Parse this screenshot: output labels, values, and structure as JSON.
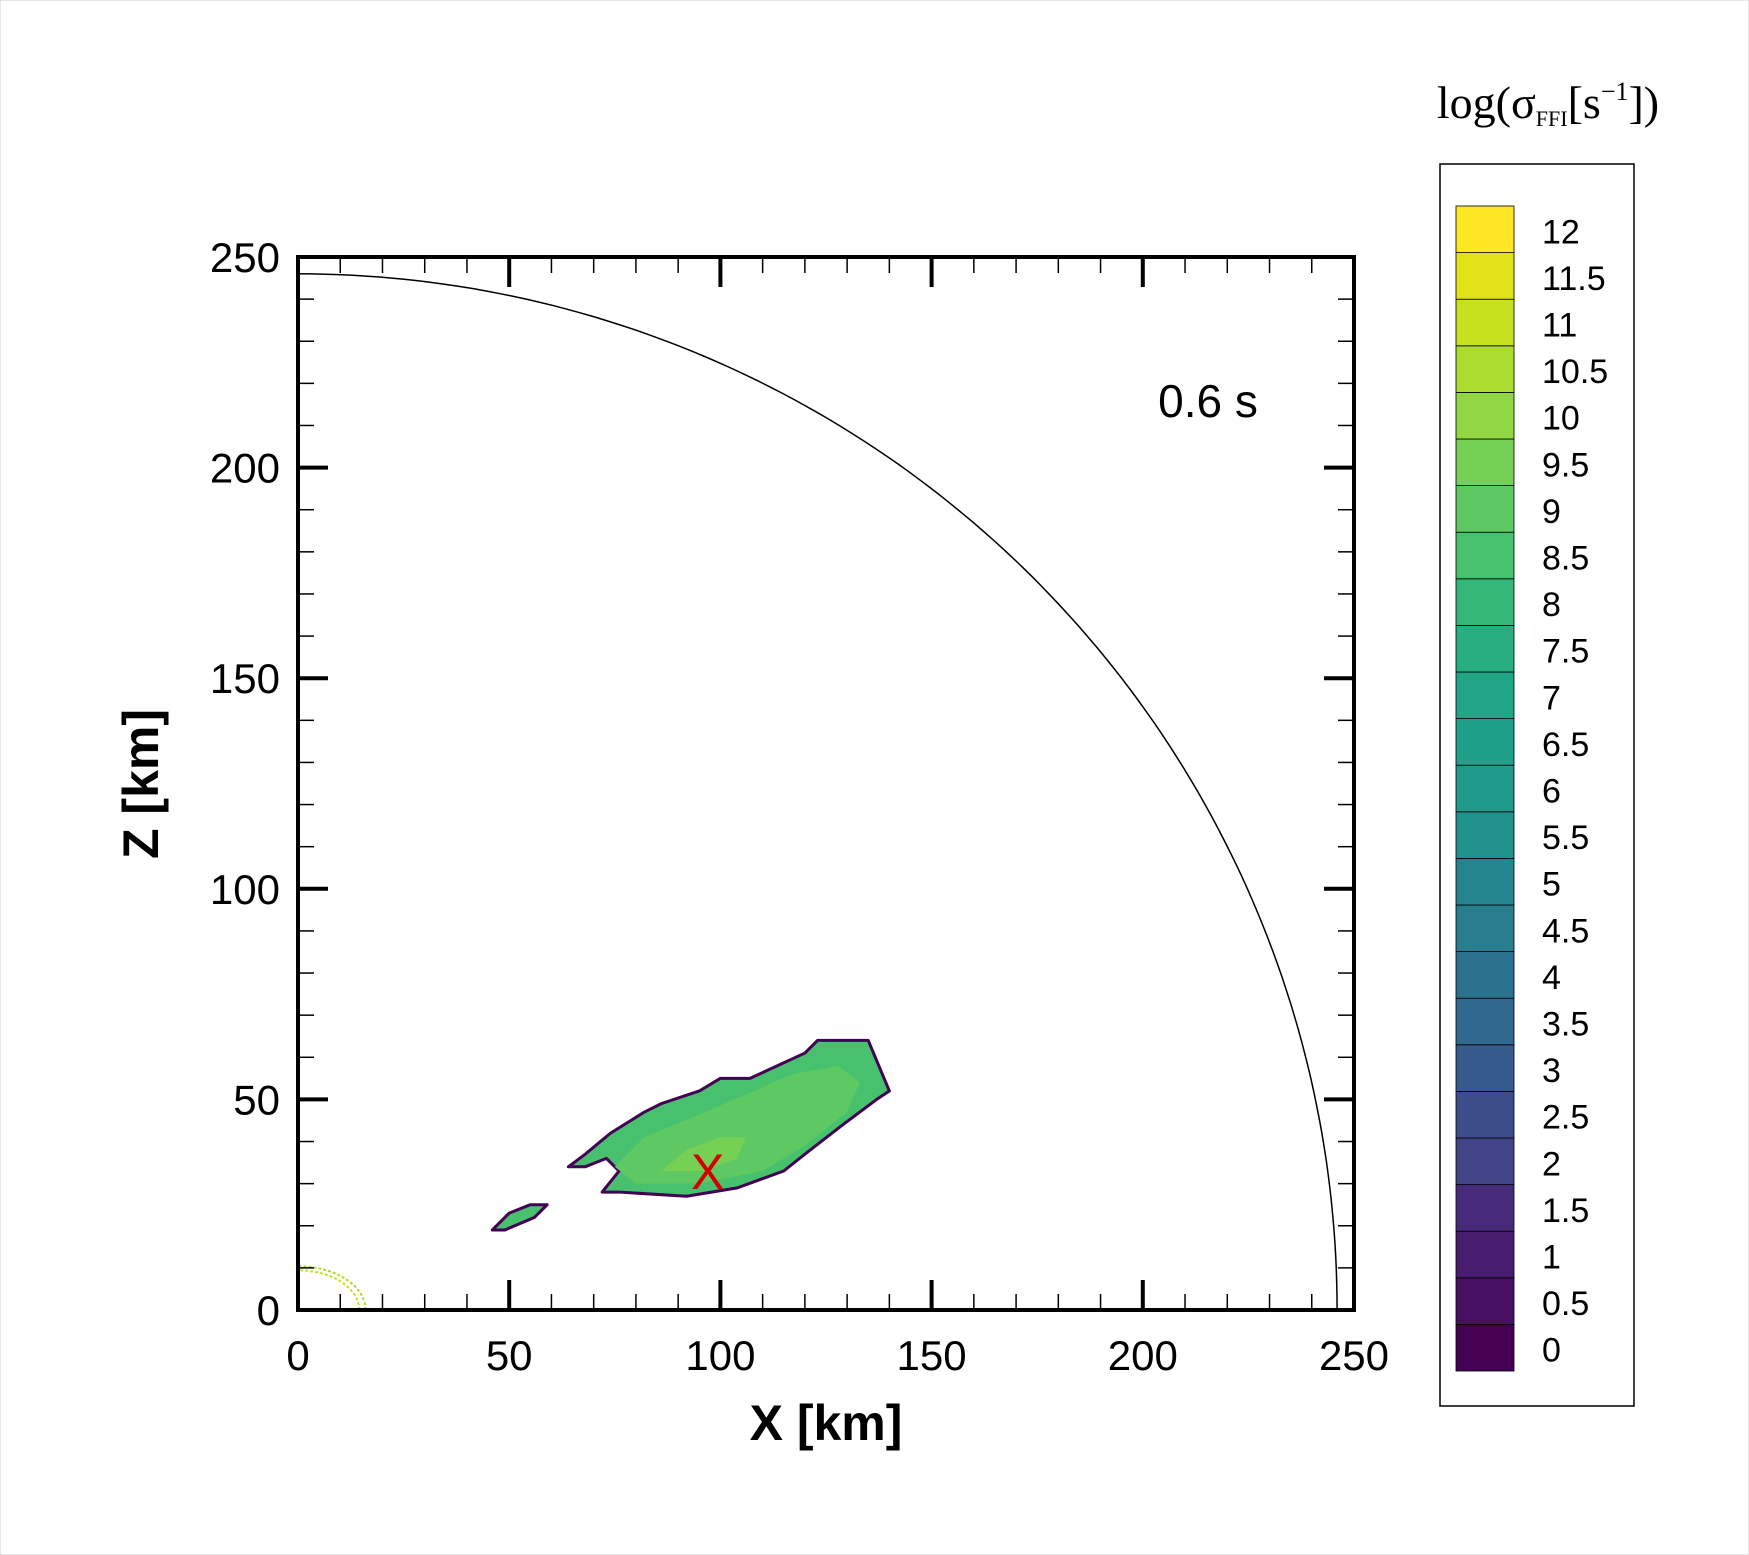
{
  "chart_data": {
    "type": "heatmap",
    "title": "",
    "xlabel": "X [km]",
    "ylabel": "Z [km]",
    "xlim": [
      0,
      250
    ],
    "ylim": [
      0,
      250
    ],
    "x_major_ticks": [
      0,
      50,
      100,
      150,
      200,
      250
    ],
    "y_major_ticks": [
      0,
      50,
      100,
      150,
      200,
      250
    ],
    "minor_tick_step": 10,
    "grid": false,
    "annotation_time": "0.6 s",
    "marker": {
      "label": "X",
      "x": 97,
      "z": 33,
      "color": "#d40000"
    },
    "boundary_radius_km": 246,
    "colorbar": {
      "title_main": "log(σ",
      "title_sub": "FFI",
      "title_unit": "[s",
      "title_exp": "−1",
      "title_close": "])",
      "placement": "right",
      "levels": [
        0,
        0.5,
        1,
        1.5,
        2,
        2.5,
        3,
        3.5,
        4,
        4.5,
        5,
        5.5,
        6,
        6.5,
        7,
        7.5,
        8,
        8.5,
        9,
        9.5,
        10,
        10.5,
        11,
        11.5,
        12
      ],
      "tick_labels": [
        "0",
        "0.5",
        "1",
        "1.5",
        "2",
        "2.5",
        "3",
        "3.5",
        "4",
        "4.5",
        "5",
        "5.5",
        "6",
        "6.5",
        "7",
        "7.5",
        "8",
        "8.5",
        "9",
        "9.5",
        "10",
        "10.5",
        "11",
        "11.5",
        "12"
      ],
      "colors": [
        "#440154",
        "#471063",
        "#481d6f",
        "#472a7a",
        "#414487",
        "#3d4d8a",
        "#375b8d",
        "#31688e",
        "#2c728e",
        "#287d8e",
        "#25858e",
        "#21918c",
        "#1f9a8a",
        "#1fa088",
        "#21a685",
        "#28ae80",
        "#35b779",
        "#47c16e",
        "#5ec962",
        "#75d054",
        "#90d743",
        "#addc30",
        "#c8e020",
        "#e1e318",
        "#fde725"
      ]
    },
    "regions": [
      {
        "name": "main-blob",
        "level": 8.5,
        "boundary_level": 0,
        "points": [
          [
            64,
            34
          ],
          [
            68,
            37
          ],
          [
            74,
            42
          ],
          [
            82,
            47
          ],
          [
            86,
            49
          ],
          [
            95,
            52
          ],
          [
            100,
            55
          ],
          [
            107,
            55
          ],
          [
            120,
            61
          ],
          [
            123,
            64
          ],
          [
            135,
            64
          ],
          [
            140,
            52
          ],
          [
            137,
            50
          ],
          [
            129,
            44
          ],
          [
            120,
            37
          ],
          [
            115,
            33
          ],
          [
            104,
            29
          ],
          [
            92,
            27
          ],
          [
            76,
            28
          ],
          [
            72,
            28
          ],
          [
            76,
            33
          ],
          [
            73,
            36
          ],
          [
            68,
            34
          ]
        ]
      },
      {
        "name": "core-region",
        "level": 9,
        "points": [
          [
            75,
            34
          ],
          [
            82,
            41
          ],
          [
            94,
            46
          ],
          [
            108,
            52
          ],
          [
            117,
            56
          ],
          [
            128,
            58
          ],
          [
            133,
            54
          ],
          [
            130,
            47
          ],
          [
            120,
            39
          ],
          [
            110,
            33
          ],
          [
            95,
            30
          ],
          [
            80,
            30
          ]
        ]
      },
      {
        "name": "peak-region",
        "level": 9.5,
        "points": [
          [
            86,
            33
          ],
          [
            92,
            38
          ],
          [
            100,
            41
          ],
          [
            106,
            41
          ],
          [
            104,
            36
          ],
          [
            96,
            33
          ]
        ]
      },
      {
        "name": "small-blob",
        "level": 8.5,
        "boundary_level": 0,
        "points": [
          [
            46,
            19
          ],
          [
            50,
            23
          ],
          [
            55,
            25
          ],
          [
            59,
            25
          ],
          [
            56,
            22
          ],
          [
            49,
            19
          ]
        ]
      }
    ],
    "arcs": [
      {
        "name": "corner-arc-outer",
        "level": 10.5,
        "radius_km": 16
      },
      {
        "name": "corner-arc-inner",
        "level": 11,
        "radius_km": 14.5
      }
    ]
  }
}
